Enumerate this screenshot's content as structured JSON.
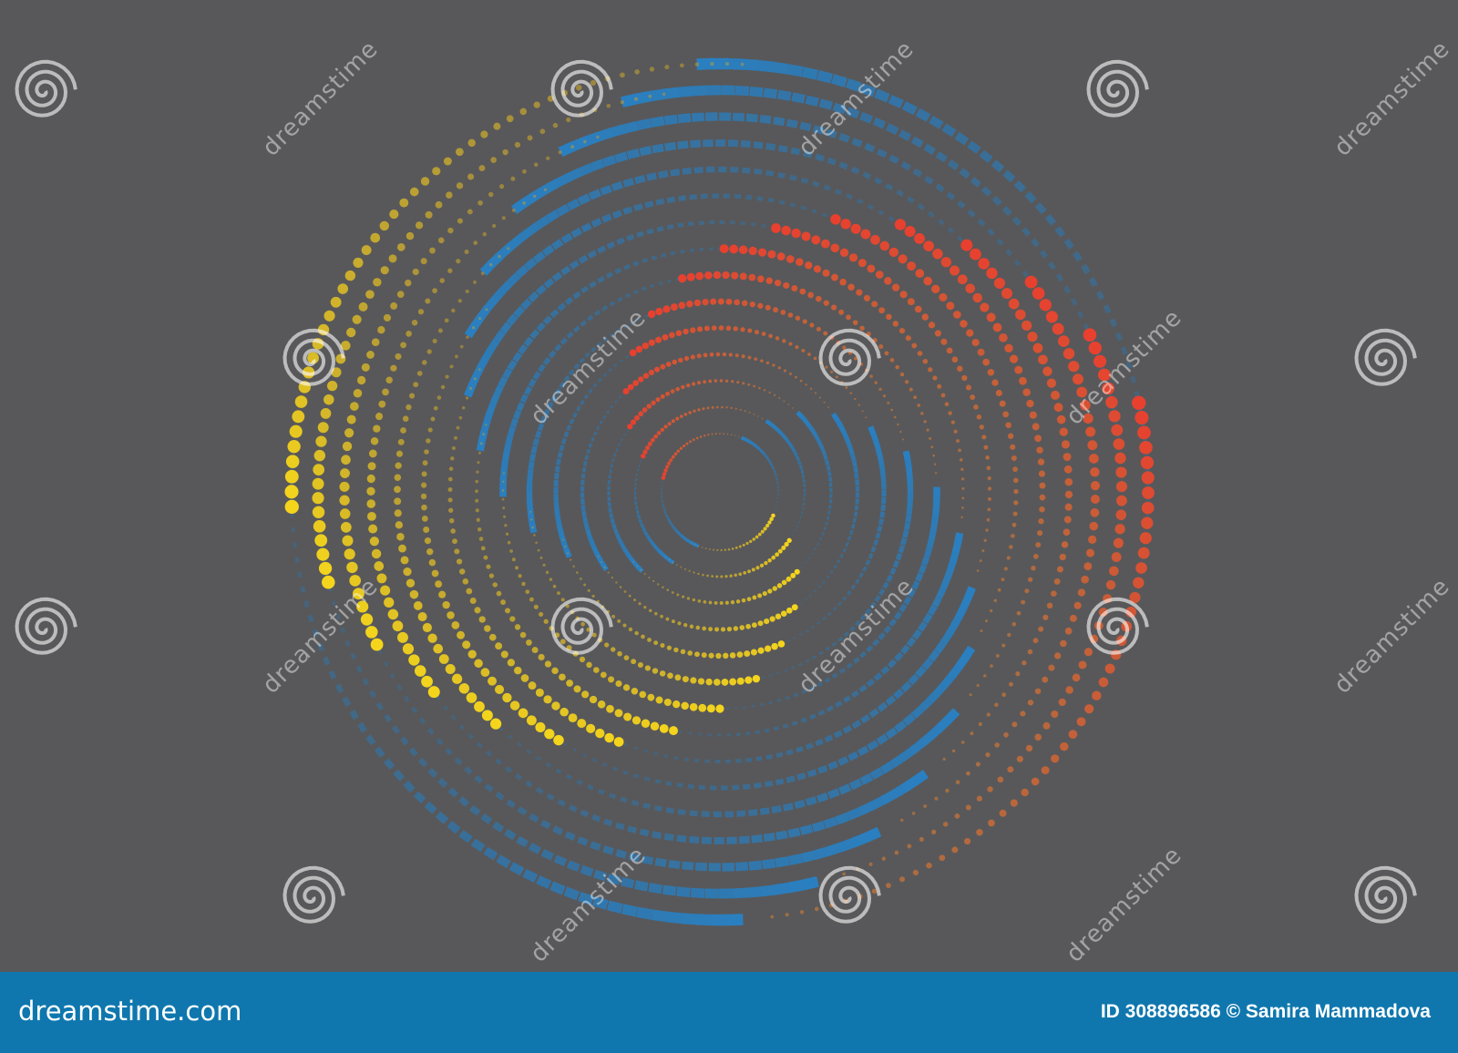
{
  "artwork": {
    "background": "#58585a",
    "colors": {
      "yellow": "#f5d51c",
      "red": "#e8402f",
      "orange": "#f08a2c",
      "blue": "#2a7fc0"
    },
    "description_elements": [
      "yellow-dot-spiral",
      "red-dot-spiral",
      "blue-square-spiral"
    ]
  },
  "watermark": {
    "text": "dreamstime",
    "icon": "spiral-logo-icon"
  },
  "footer": {
    "background": "#0f77ae",
    "logo": "dreamstime.com",
    "credit": "ID 308896586 © Samira Mammadova"
  }
}
